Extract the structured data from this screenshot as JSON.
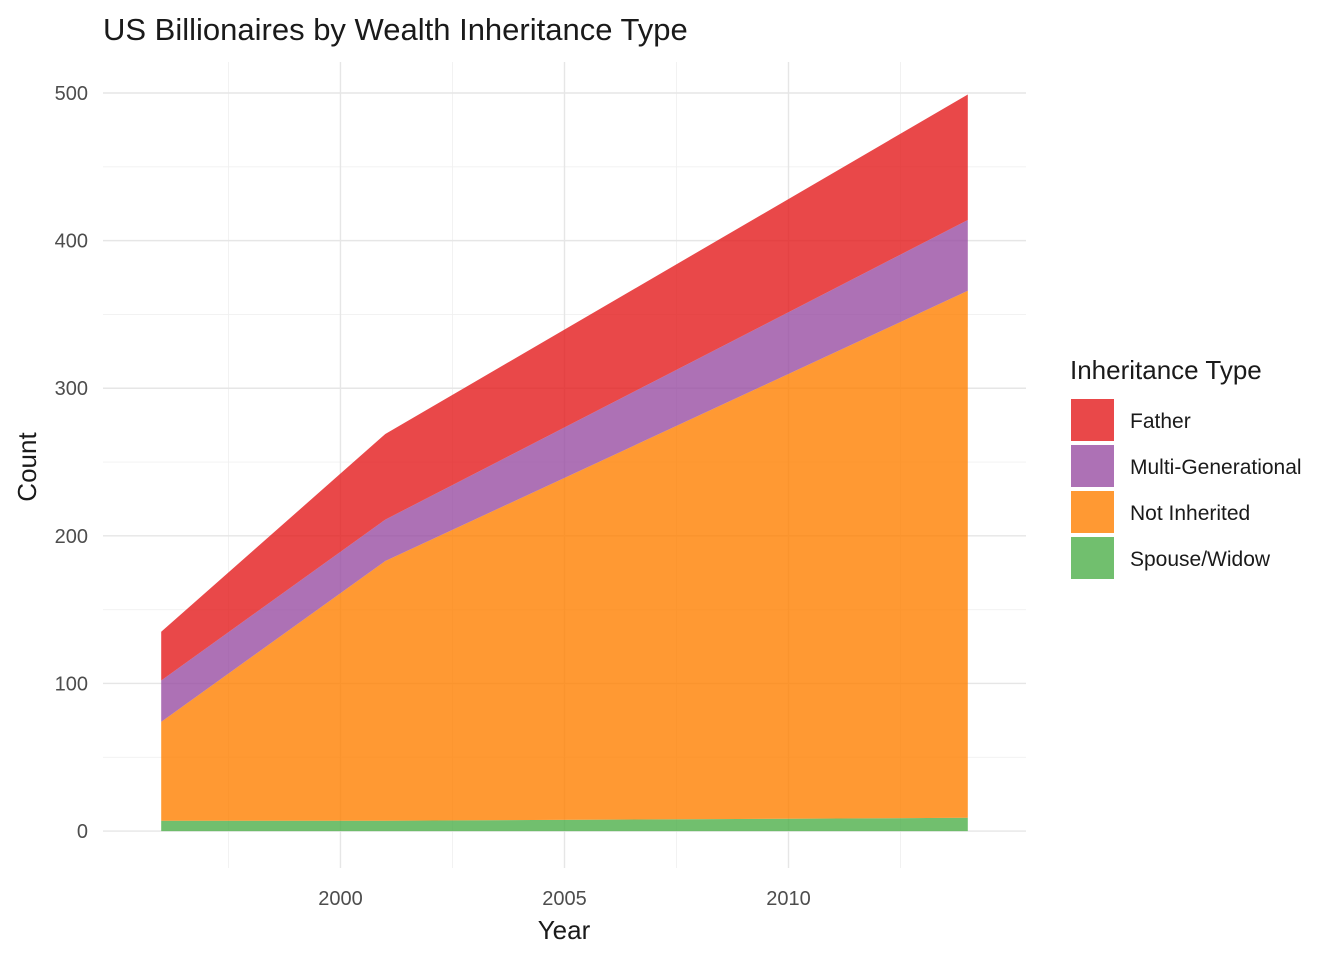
{
  "chart_data": {
    "type": "area",
    "stacked": true,
    "title": "US Billionaires by Wealth Inheritance Type",
    "xlabel": "Year",
    "ylabel": "Count",
    "x": [
      1996,
      2001,
      2014
    ],
    "xlim": [
      1994.7,
      2015.3
    ],
    "ylim": [
      -25,
      521
    ],
    "x_ticks": [
      2000,
      2005,
      2010
    ],
    "y_ticks": [
      0,
      100,
      200,
      300,
      400,
      500
    ],
    "grid": true,
    "legend": {
      "title": "Inheritance Type",
      "position": "right"
    },
    "series": [
      {
        "name": "Spouse/Widow",
        "values": [
          7,
          7,
          9
        ],
        "color": "#4daf4a"
      },
      {
        "name": "Not Inherited",
        "values": [
          67,
          176,
          357
        ],
        "color": "#ff7f00"
      },
      {
        "name": "Multi-Generational",
        "values": [
          28,
          28,
          48
        ],
        "color": "#984ea3"
      },
      {
        "name": "Father",
        "values": [
          33,
          58,
          85
        ],
        "color": "#e41a1c"
      }
    ],
    "legend_order": [
      "Father",
      "Multi-Generational",
      "Not Inherited",
      "Spouse/Widow"
    ],
    "fill_opacity": 0.8
  }
}
